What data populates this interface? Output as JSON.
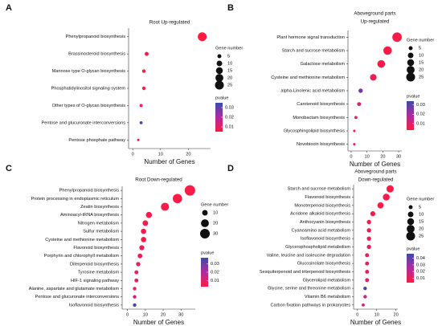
{
  "chart_data": [
    {
      "type": "scatter",
      "label": "A",
      "title": [
        "Root Up-regulated"
      ],
      "xlabel": "Number of Genes",
      "categories": [
        "Phenylpropanoid biosynthesis",
        "Brassinosteroid biosynthesis",
        "Mannose type O-glycan biosynthesis",
        "Phosphatidylinositol signaling system",
        "Other types of O-glycan biosynthesis",
        "Pentose and glucuronate interconversions",
        "Pentose phosphate pathway"
      ],
      "values": [
        25,
        5,
        4,
        4,
        3,
        3,
        2
      ],
      "pvalues": [
        0.005,
        0.006,
        0.007,
        0.007,
        0.008,
        0.034,
        0.009
      ],
      "xlim": [
        -1.5,
        28
      ],
      "xticks": [
        0,
        10,
        20
      ],
      "size_legend": {
        "title": "Gene number",
        "values": [
          5,
          10,
          15,
          20,
          25
        ]
      },
      "color_legend": {
        "title": "pvalue",
        "lim": [
          0.005,
          0.035
        ],
        "ticks": [
          0.03,
          0.02,
          0.01
        ]
      }
    },
    {
      "type": "scatter",
      "label": "B",
      "title": [
        "Aboveground parts",
        "Up-regulated"
      ],
      "xlabel": "Number of Genes",
      "categories": [
        "Plant hormone signal transduction",
        "Starch and sucrose metabolism",
        "Galactose metabolism",
        "Cysteine and methionine metabolism",
        "alpha-Linolenic acid metabolism",
        "Carotenoid biosynthesis",
        "Monobactam biosynthesis",
        "Glycosphingolipid biosynthesis",
        "Novobiocin biosynthesis"
      ],
      "values": [
        29,
        23,
        19,
        14,
        6,
        5,
        3,
        2,
        2
      ],
      "pvalues": [
        0.004,
        0.004,
        0.005,
        0.006,
        0.027,
        0.007,
        0.008,
        0.008,
        0.009
      ],
      "xlim": [
        -2,
        32
      ],
      "xticks": [
        0,
        10,
        20,
        30
      ],
      "size_legend": {
        "title": "Gene number",
        "values": [
          5,
          10,
          15,
          20,
          25
        ]
      },
      "color_legend": {
        "title": "pvalue",
        "lim": [
          0.003,
          0.034
        ],
        "ticks": [
          0.03,
          0.02,
          0.01
        ]
      }
    },
    {
      "type": "scatter",
      "label": "C",
      "title": [
        "Root Down-regulated"
      ],
      "xlabel": "Number of Genes",
      "categories": [
        "Phenylpropanoid biosynthesis",
        "Protein processing in endoplasmic reticulum",
        "Zeatin biosynthesis",
        "Aminoacyl-tRNA biosynthesis",
        "Nitrogen metabolism",
        "Sulfur metabolism",
        "Cysteine and methionine metabolism",
        "Flavonoid biosynthesis",
        "Porphyrin and chlorophyll metabolism",
        "Diterpenoid biosynthesis",
        "Tyrosine metabolism",
        "HIF-1 signaling pathway",
        "Alanine, aspartate and glutamate metabolism",
        "Pentose and glucuronate interconversions",
        "Isoflavonoid biosynthesis"
      ],
      "values": [
        35,
        28,
        21,
        12,
        10,
        9,
        9,
        8,
        7,
        6,
        5,
        5,
        4,
        4,
        4
      ],
      "pvalues": [
        0.004,
        0.004,
        0.004,
        0.005,
        0.005,
        0.006,
        0.006,
        0.007,
        0.007,
        0.008,
        0.009,
        0.01,
        0.011,
        0.013,
        0.035
      ],
      "xlim": [
        -3,
        38
      ],
      "xticks": [
        0,
        10,
        20,
        30
      ],
      "size_legend": {
        "title": "Gene number",
        "values": [
          10,
          20,
          30
        ]
      },
      "color_legend": {
        "title": "pvalue",
        "lim": [
          0.003,
          0.037
        ],
        "ticks": [
          0.03,
          0.02,
          0.01
        ]
      }
    },
    {
      "type": "scatter",
      "label": "D",
      "title": [
        "Aboveground parts",
        "Down-regulated"
      ],
      "xlabel": "Number of Genes",
      "categories": [
        "Starch and sucrose metabolism",
        "Flavonoid biosynthesis",
        "Monoterpenoid biosynthesis",
        "Acridone alkaloid biosynthesis",
        "Anthocyanin biosynthesis",
        "Cyanoamino acid metabolism",
        "Isoflavonoid biosynthesis",
        "Glycerophospholipid metabolism",
        "Valine, leucine and isoleucine degradation",
        "Glucosinolate biosynthesis",
        "Sesquiterpenoid and triterpenoid biosynthesis",
        "Glycerolipid metabolism",
        "Glycine, serine and threonine metabolism",
        "Vitamin B6 metabolism",
        "Carbon fixation pathways in prokaryotes"
      ],
      "values": [
        17,
        15,
        12,
        8,
        6,
        6,
        6,
        6,
        5,
        5,
        5,
        5,
        4,
        4,
        3
      ],
      "pvalues": [
        0.004,
        0.005,
        0.005,
        0.006,
        0.007,
        0.007,
        0.008,
        0.008,
        0.009,
        0.01,
        0.01,
        0.011,
        0.045,
        0.015,
        0.016
      ],
      "xlim": [
        -2,
        21
      ],
      "xticks": [
        0,
        10,
        20
      ],
      "size_legend": {
        "title": "Gene number",
        "values": [
          5,
          10,
          15,
          20,
          25
        ]
      },
      "color_legend": {
        "title": "pvalue",
        "lim": [
          0.003,
          0.047
        ],
        "ticks": [
          0.04,
          0.03,
          0.02,
          0.01
        ]
      }
    }
  ]
}
